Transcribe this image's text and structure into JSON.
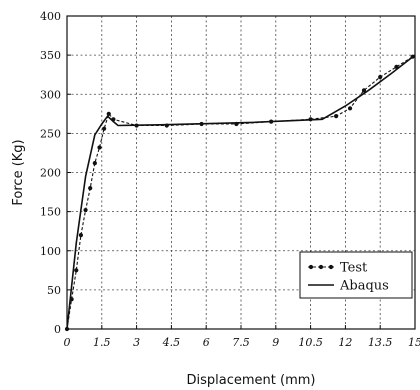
{
  "chart_data": {
    "type": "line",
    "title": "",
    "xlabel": "Displacement (mm)",
    "ylabel": "Force (Kg)",
    "xlim": [
      0,
      15
    ],
    "ylim": [
      0,
      400
    ],
    "xticks": [
      0,
      1.5,
      3,
      4.5,
      6,
      7.5,
      9,
      10.5,
      12,
      13.5,
      15
    ],
    "xtick_labels": [
      "0",
      "1.5",
      "3",
      "4.5",
      "6",
      "7.5",
      "9",
      "10.5",
      "12",
      "13.5",
      "15"
    ],
    "yticks": [
      0,
      50,
      100,
      150,
      200,
      250,
      300,
      350,
      400
    ],
    "ytick_labels": [
      "0",
      "50",
      "100",
      "150",
      "200",
      "250",
      "300",
      "350",
      "400"
    ],
    "grid": true,
    "legend_position": "bottom-right",
    "series": [
      {
        "name": "Test",
        "style": "dashed-with-markers",
        "color": "#111111",
        "x": [
          0,
          0.2,
          0.4,
          0.6,
          0.8,
          1.0,
          1.2,
          1.4,
          1.6,
          1.8,
          2.0,
          3.0,
          4.3,
          5.8,
          7.3,
          8.8,
          10.5,
          11.6,
          12.2,
          12.8,
          13.5,
          14.2,
          14.9
        ],
        "y": [
          0,
          38,
          75,
          120,
          152,
          180,
          212,
          232,
          256,
          275,
          268,
          260,
          260,
          262,
          262,
          265,
          268,
          272,
          282,
          305,
          322,
          335,
          348
        ]
      },
      {
        "name": "Abaqus",
        "style": "solid",
        "color": "#111111",
        "x": [
          0,
          0.4,
          0.8,
          1.2,
          1.5,
          1.75,
          2.0,
          2.2,
          4.0,
          8.0,
          11.0,
          12.0,
          13.0,
          14.0,
          15.0
        ],
        "y": [
          0,
          110,
          195,
          248,
          262,
          272,
          265,
          260,
          261,
          264,
          268,
          285,
          305,
          327,
          350
        ]
      }
    ]
  }
}
